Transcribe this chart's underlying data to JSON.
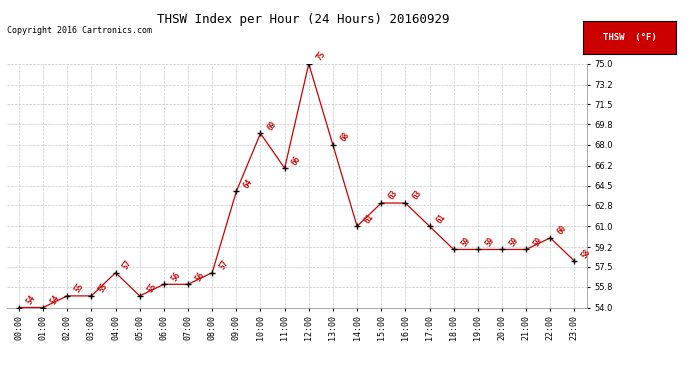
{
  "title": "THSW Index per Hour (24 Hours) 20160929",
  "copyright": "Copyright 2016 Cartronics.com",
  "legend_label": "THSW  (°F)",
  "hours": [
    0,
    1,
    2,
    3,
    4,
    5,
    6,
    7,
    8,
    9,
    10,
    11,
    12,
    13,
    14,
    15,
    16,
    17,
    18,
    19,
    20,
    21,
    22,
    23
  ],
  "values": [
    54,
    54,
    55,
    55,
    57,
    55,
    56,
    56,
    57,
    64,
    69,
    66,
    75,
    68,
    61,
    63,
    63,
    61,
    59,
    59,
    59,
    59,
    60,
    58
  ],
  "xlabels": [
    "00:00",
    "01:00",
    "02:00",
    "03:00",
    "04:00",
    "05:00",
    "06:00",
    "07:00",
    "08:00",
    "09:00",
    "10:00",
    "11:00",
    "12:00",
    "13:00",
    "14:00",
    "15:00",
    "16:00",
    "17:00",
    "18:00",
    "19:00",
    "20:00",
    "21:00",
    "22:00",
    "23:00"
  ],
  "ylim": [
    54.0,
    75.0
  ],
  "yticks": [
    54.0,
    55.8,
    57.5,
    59.2,
    61.0,
    62.8,
    64.5,
    66.2,
    68.0,
    69.8,
    71.5,
    73.2,
    75.0
  ],
  "line_color": "#cc0000",
  "marker_color": "#000000",
  "label_color": "#cc0000",
  "bg_color": "#ffffff",
  "grid_color": "#c8c8c8",
  "title_color": "#000000",
  "legend_bg": "#cc0000",
  "legend_text_color": "#ffffff",
  "font_size_title": 9,
  "font_size_ticks": 6,
  "font_size_copyright": 6,
  "font_size_legend": 6.5,
  "font_size_data_labels": 5.5
}
